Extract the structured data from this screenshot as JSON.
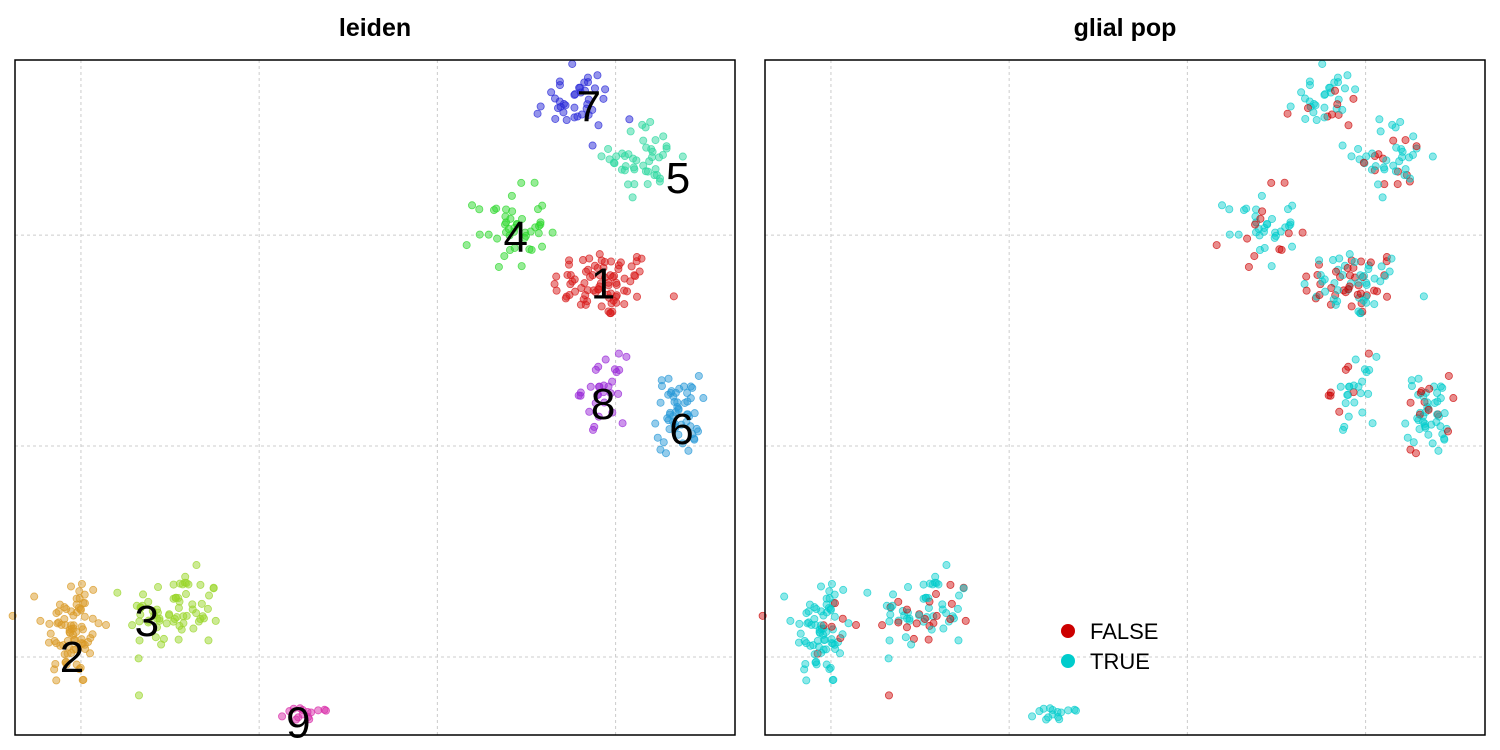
{
  "chart_data": [
    {
      "type": "scatter",
      "title": "leiden",
      "xlim": [
        -3.6,
        16.6
      ],
      "ylim": [
        -5.6,
        10.4
      ],
      "x_gridlines": [
        -1.75,
        3.25,
        8.25,
        13.25
      ],
      "y_gridlines": [
        -3.75,
        1.25,
        6.25
      ],
      "grid": true,
      "clusters": [
        {
          "label": "1",
          "color": "#d81b1b",
          "center": [
            12.9,
            5.1
          ],
          "spread": [
            1.3,
            0.75
          ],
          "n": 80,
          "label_pos": [
            12.9,
            5.1
          ]
        },
        {
          "label": "2",
          "color": "#d99a26",
          "center": [
            -2.0,
            -3.1
          ],
          "spread": [
            0.75,
            1.25
          ],
          "n": 80,
          "label_pos": [
            -2.0,
            -3.75
          ]
        },
        {
          "label": "3",
          "color": "#9ad62a",
          "center": [
            0.9,
            -2.7
          ],
          "spread": [
            1.2,
            0.85
          ],
          "n": 70,
          "label_pos": [
            0.1,
            -2.9
          ]
        },
        {
          "label": "4",
          "color": "#2ed82e",
          "center": [
            10.3,
            6.4
          ],
          "spread": [
            0.9,
            0.85
          ],
          "n": 45,
          "label_pos": [
            10.45,
            6.2
          ]
        },
        {
          "label": "5",
          "color": "#2ed8a0",
          "center": [
            14.1,
            8.1
          ],
          "spread": [
            0.9,
            0.75
          ],
          "n": 45,
          "label_pos": [
            15.0,
            7.6
          ]
        },
        {
          "label": "6",
          "color": "#2a9ad8",
          "center": [
            15.0,
            2.0
          ],
          "spread": [
            0.55,
            0.85
          ],
          "n": 55,
          "label_pos": [
            15.1,
            1.65
          ]
        },
        {
          "label": "7",
          "color": "#2a2ad8",
          "center": [
            12.1,
            9.4
          ],
          "spread": [
            1.0,
            0.65
          ],
          "n": 40,
          "label_pos": [
            12.5,
            9.3
          ]
        },
        {
          "label": "8",
          "color": "#9a2ad8",
          "center": [
            12.9,
            2.6
          ],
          "spread": [
            0.55,
            0.7
          ],
          "n": 30,
          "label_pos": [
            12.9,
            2.25
          ]
        },
        {
          "label": "9",
          "color": "#d82aa8",
          "center": [
            4.6,
            -5.1
          ],
          "spread": [
            0.55,
            0.15
          ],
          "n": 15,
          "label_pos": [
            4.35,
            -5.3
          ]
        }
      ]
    },
    {
      "type": "scatter",
      "title": "glial pop",
      "xlim": [
        -3.6,
        16.6
      ],
      "ylim": [
        -5.6,
        10.4
      ],
      "x_gridlines": [
        -1.75,
        3.25,
        8.25,
        13.25
      ],
      "y_gridlines": [
        -3.75,
        1.25,
        6.25
      ],
      "grid": true,
      "legend_position": "bottom-center",
      "series": [
        {
          "name": "FALSE",
          "color": "#cc0000"
        },
        {
          "name": "TRUE",
          "color": "#00cccc"
        }
      ]
    }
  ]
}
